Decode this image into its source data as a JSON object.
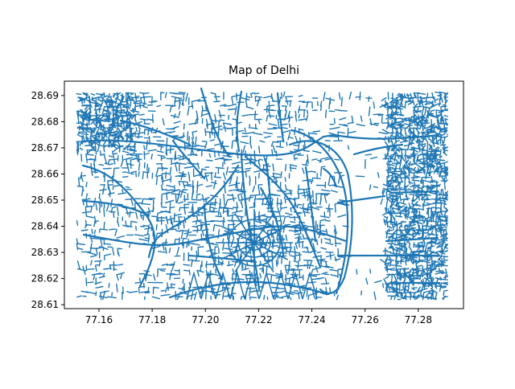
{
  "chart_data": {
    "type": "map",
    "title": "Map of Delhi",
    "xlabel": "",
    "ylabel": "",
    "xlim": [
      77.147,
      77.297
    ],
    "ylim": [
      28.6085,
      28.6955
    ],
    "x_ticks": [
      77.16,
      77.18,
      77.2,
      77.22,
      77.24,
      77.26,
      77.28
    ],
    "x_tick_labels": [
      "77.16",
      "77.18",
      "77.20",
      "77.22",
      "77.24",
      "77.26",
      "77.28"
    ],
    "y_ticks": [
      28.61,
      28.62,
      28.63,
      28.64,
      28.65,
      28.66,
      28.67,
      28.68,
      28.69
    ],
    "y_tick_labels": [
      "28.61",
      "28.62",
      "28.63",
      "28.64",
      "28.65",
      "28.66",
      "28.67",
      "28.68",
      "28.69"
    ],
    "extent": {
      "lon": [
        77.152,
        77.291
      ],
      "lat": [
        28.612,
        28.691
      ]
    },
    "line_color": "#1f77b4",
    "grid": false,
    "legend": "none"
  }
}
